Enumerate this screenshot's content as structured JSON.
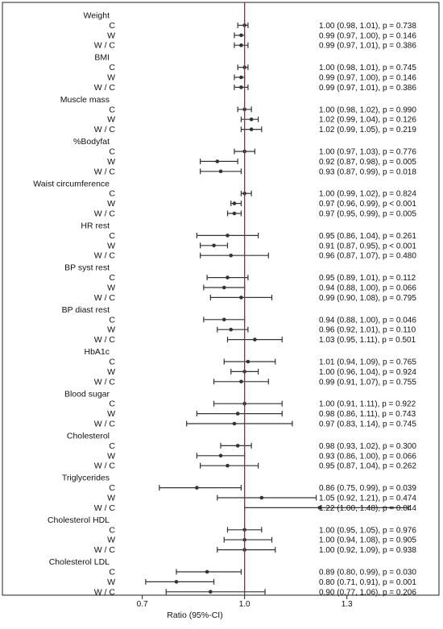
{
  "chart_data": {
    "type": "forest",
    "xlabel": "Ratio (95%-CI)",
    "x_ticks": [
      0.7,
      1.0,
      1.3
    ],
    "xlim": [
      0.63,
      1.57
    ],
    "reference_line": 1.0,
    "reference_color": "#c0143c",
    "point_color": "#333333",
    "groups": [
      {
        "name": "Weight",
        "rows": [
          {
            "label": "C",
            "est": 1.0,
            "lo": 0.98,
            "hi": 1.01,
            "text": "1.00 (0.98, 1.01), p = 0.738"
          },
          {
            "label": "W",
            "est": 0.99,
            "lo": 0.97,
            "hi": 1.0,
            "text": "0.99 (0.97, 1.00), p = 0.146"
          },
          {
            "label": "W / C",
            "est": 0.99,
            "lo": 0.97,
            "hi": 1.01,
            "text": "0.99 (0.97, 1.01), p = 0.386"
          }
        ]
      },
      {
        "name": "BMI",
        "rows": [
          {
            "label": "C",
            "est": 1.0,
            "lo": 0.98,
            "hi": 1.01,
            "text": "1.00 (0.98, 1.01), p = 0.745"
          },
          {
            "label": "W",
            "est": 0.99,
            "lo": 0.97,
            "hi": 1.0,
            "text": "0.99 (0.97, 1.00), p = 0.146"
          },
          {
            "label": "W / C",
            "est": 0.99,
            "lo": 0.97,
            "hi": 1.01,
            "text": "0.99 (0.97, 1.01), p = 0.386"
          }
        ]
      },
      {
        "name": "Muscle mass",
        "rows": [
          {
            "label": "C",
            "est": 1.0,
            "lo": 0.98,
            "hi": 1.02,
            "text": "1.00 (0.98, 1.02), p = 0.990"
          },
          {
            "label": "W",
            "est": 1.02,
            "lo": 0.99,
            "hi": 1.04,
            "text": "1.02 (0.99, 1.04), p = 0.126"
          },
          {
            "label": "W / C",
            "est": 1.02,
            "lo": 0.99,
            "hi": 1.05,
            "text": "1.02 (0.99, 1.05), p = 0.219"
          }
        ]
      },
      {
        "name": "%Bodyfat",
        "rows": [
          {
            "label": "C",
            "est": 1.0,
            "lo": 0.97,
            "hi": 1.03,
            "text": "1.00 (0.97, 1.03), p = 0.776"
          },
          {
            "label": "W",
            "est": 0.92,
            "lo": 0.87,
            "hi": 0.98,
            "text": "0.92 (0.87, 0.98), p = 0.005"
          },
          {
            "label": "W / C",
            "est": 0.93,
            "lo": 0.87,
            "hi": 0.99,
            "text": "0.93 (0.87, 0.99), p = 0.018"
          }
        ]
      },
      {
        "name": "Waist circumference",
        "rows": [
          {
            "label": "C",
            "est": 1.0,
            "lo": 0.99,
            "hi": 1.02,
            "text": "1.00 (0.99, 1.02), p = 0.824"
          },
          {
            "label": "W",
            "est": 0.97,
            "lo": 0.96,
            "hi": 0.99,
            "text": "0.97 (0.96, 0.99), p < 0.001"
          },
          {
            "label": "W / C",
            "est": 0.97,
            "lo": 0.95,
            "hi": 0.99,
            "text": "0.97 (0.95, 0.99), p = 0.005"
          }
        ]
      },
      {
        "name": "HR rest",
        "rows": [
          {
            "label": "C",
            "est": 0.95,
            "lo": 0.86,
            "hi": 1.04,
            "text": "0.95 (0.86, 1.04), p = 0.261"
          },
          {
            "label": "W",
            "est": 0.91,
            "lo": 0.87,
            "hi": 0.95,
            "text": "0.91 (0.87, 0.95), p < 0.001"
          },
          {
            "label": "W / C",
            "est": 0.96,
            "lo": 0.87,
            "hi": 1.07,
            "text": "0.96 (0.87, 1.07), p = 0.480"
          }
        ]
      },
      {
        "name": "BP syst rest",
        "rows": [
          {
            "label": "C",
            "est": 0.95,
            "lo": 0.89,
            "hi": 1.01,
            "text": "0.95 (0.89, 1.01), p = 0.112"
          },
          {
            "label": "W",
            "est": 0.94,
            "lo": 0.88,
            "hi": 1.0,
            "text": "0.94 (0.88, 1.00), p = 0.066"
          },
          {
            "label": "W / C",
            "est": 0.99,
            "lo": 0.9,
            "hi": 1.08,
            "text": "0.99 (0.90, 1.08), p = 0.795"
          }
        ]
      },
      {
        "name": "BP diast rest",
        "rows": [
          {
            "label": "C",
            "est": 0.94,
            "lo": 0.88,
            "hi": 1.0,
            "text": "0.94 (0.88, 1.00), p = 0.046"
          },
          {
            "label": "W",
            "est": 0.96,
            "lo": 0.92,
            "hi": 1.01,
            "text": "0.96 (0.92, 1.01), p = 0.110"
          },
          {
            "label": "W / C",
            "est": 1.03,
            "lo": 0.95,
            "hi": 1.11,
            "text": "1.03 (0.95, 1.11), p = 0.501"
          }
        ]
      },
      {
        "name": "HbA1c",
        "rows": [
          {
            "label": "C",
            "est": 1.01,
            "lo": 0.94,
            "hi": 1.09,
            "text": "1.01 (0.94, 1.09), p = 0.765"
          },
          {
            "label": "W",
            "est": 1.0,
            "lo": 0.96,
            "hi": 1.04,
            "text": "1.00 (0.96, 1.04), p = 0.924"
          },
          {
            "label": "W / C",
            "est": 0.99,
            "lo": 0.91,
            "hi": 1.07,
            "text": "0.99 (0.91, 1.07), p = 0.755"
          }
        ]
      },
      {
        "name": "Blood sugar",
        "rows": [
          {
            "label": "C",
            "est": 1.0,
            "lo": 0.91,
            "hi": 1.11,
            "text": "1.00 (0.91, 1.11), p = 0.922"
          },
          {
            "label": "W",
            "est": 0.98,
            "lo": 0.86,
            "hi": 1.11,
            "text": "0.98 (0.86, 1.11), p = 0.743"
          },
          {
            "label": "W / C",
            "est": 0.97,
            "lo": 0.83,
            "hi": 1.14,
            "text": "0.97 (0.83, 1.14), p = 0.745"
          }
        ]
      },
      {
        "name": "Cholesterol",
        "rows": [
          {
            "label": "C",
            "est": 0.98,
            "lo": 0.93,
            "hi": 1.02,
            "text": "0.98 (0.93, 1.02), p = 0.300"
          },
          {
            "label": "W",
            "est": 0.93,
            "lo": 0.86,
            "hi": 1.0,
            "text": "0.93 (0.86, 1.00), p = 0.066"
          },
          {
            "label": "W / C",
            "est": 0.95,
            "lo": 0.87,
            "hi": 1.04,
            "text": "0.95 (0.87, 1.04), p = 0.262"
          }
        ]
      },
      {
        "name": "Triglycerides",
        "rows": [
          {
            "label": "C",
            "est": 0.86,
            "lo": 0.75,
            "hi": 0.99,
            "text": "0.86 (0.75, 0.99), p = 0.039"
          },
          {
            "label": "W",
            "est": 1.05,
            "lo": 0.92,
            "hi": 1.21,
            "text": "1.05 (0.92, 1.21), p = 0.474"
          },
          {
            "label": "W / C",
            "est": 1.22,
            "lo": 1.0,
            "hi": 1.48,
            "text": "1.22 (1.00, 1.48), p = 0.044"
          }
        ]
      },
      {
        "name": "Cholesterol HDL",
        "rows": [
          {
            "label": "C",
            "est": 1.0,
            "lo": 0.95,
            "hi": 1.05,
            "text": "1.00 (0.95, 1.05), p = 0.976"
          },
          {
            "label": "W",
            "est": 1.0,
            "lo": 0.94,
            "hi": 1.08,
            "text": "1.00 (0.94, 1.08), p = 0.905"
          },
          {
            "label": "W / C",
            "est": 1.0,
            "lo": 0.92,
            "hi": 1.09,
            "text": "1.00 (0.92, 1.09), p = 0.938"
          }
        ]
      },
      {
        "name": "Cholesterol LDL",
        "rows": [
          {
            "label": "C",
            "est": 0.89,
            "lo": 0.8,
            "hi": 0.99,
            "text": "0.89 (0.80, 0.99), p = 0.030"
          },
          {
            "label": "W",
            "est": 0.8,
            "lo": 0.71,
            "hi": 0.91,
            "text": "0.80 (0.71, 0.91), p = 0.001"
          },
          {
            "label": "W / C",
            "est": 0.9,
            "lo": 0.77,
            "hi": 1.06,
            "text": "0.90 (0.77, 1.06), p = 0.206"
          }
        ]
      }
    ]
  }
}
